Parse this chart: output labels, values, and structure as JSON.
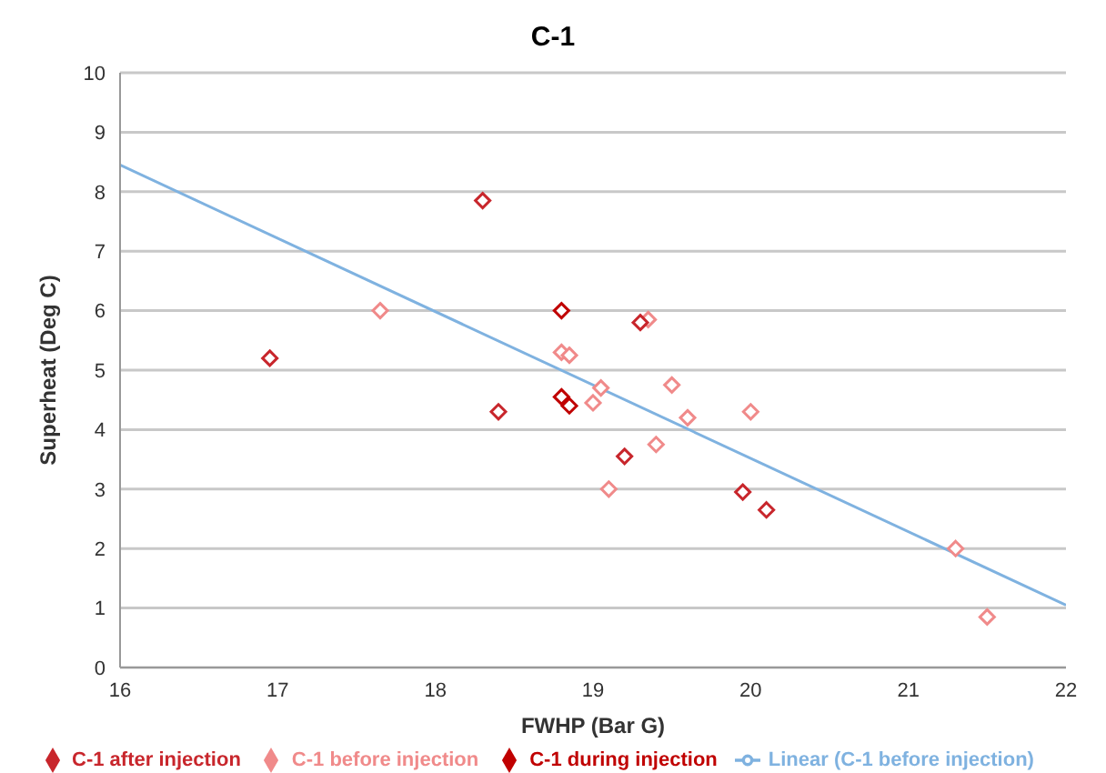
{
  "chart_data": {
    "type": "scatter",
    "title": "C-1",
    "xlabel": "FWHP (Bar G)",
    "ylabel": "Superheat (Deg C)",
    "xlim": [
      16,
      22
    ],
    "xticks": [
      16,
      17,
      18,
      19,
      20,
      21,
      22
    ],
    "ylim": [
      0,
      10
    ],
    "yticks": [
      0,
      1,
      2,
      3,
      4,
      5,
      6,
      7,
      8,
      9,
      10
    ],
    "grid": "y",
    "legend": "bottom",
    "marker": "diamond",
    "series": [
      {
        "name": "C-1 before injection",
        "color": "#f08a8a",
        "x": [
          17.65,
          18.8,
          18.85,
          19.0,
          19.05,
          19.1,
          19.35,
          19.4,
          19.5,
          19.6,
          20.0,
          21.3,
          21.5
        ],
        "values": [
          6.0,
          5.3,
          5.25,
          4.45,
          4.7,
          3.0,
          5.85,
          3.75,
          4.75,
          4.2,
          4.3,
          2.0,
          0.85
        ]
      },
      {
        "name": "C-1 during injection",
        "color": "#c00000",
        "x": [
          18.8,
          18.8,
          18.85
        ],
        "values": [
          6.0,
          4.55,
          4.4
        ]
      },
      {
        "name": "C-1 after injection",
        "color": "#c8262c",
        "x": [
          16.95,
          18.3,
          18.4,
          19.2,
          19.3,
          19.95,
          20.1
        ],
        "values": [
          5.2,
          7.85,
          4.3,
          3.55,
          5.8,
          2.95,
          2.65
        ]
      },
      {
        "name": "Linear (C-1 before injection)",
        "type": "line",
        "marker": "none",
        "color": "#7fb2e0",
        "x": [
          16,
          22
        ],
        "values": [
          8.45,
          1.05
        ]
      }
    ]
  }
}
